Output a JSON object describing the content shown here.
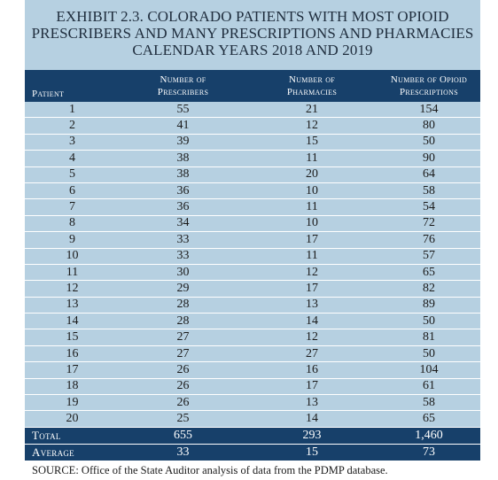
{
  "title_lines": [
    "EXHIBIT 2.3. COLORADO PATIENTS WITH MOST OPIOID",
    "PRESCRIBERS AND MANY PRESCRIPTIONS AND PHARMACIES",
    "CALENDAR YEARS 2018 AND 2019"
  ],
  "headers": [
    {
      "line1": "",
      "line2": "Patient"
    },
    {
      "line1": "Number of",
      "line2": "Prescribers"
    },
    {
      "line1": "Number of",
      "line2": "Pharmacies"
    },
    {
      "line1": "Number of Opioid",
      "line2": "Prescriptions"
    }
  ],
  "rows": [
    [
      "1",
      "55",
      "21",
      "154"
    ],
    [
      "2",
      "41",
      "12",
      "80"
    ],
    [
      "3",
      "39",
      "15",
      "50"
    ],
    [
      "4",
      "38",
      "11",
      "90"
    ],
    [
      "5",
      "38",
      "20",
      "64"
    ],
    [
      "6",
      "36",
      "10",
      "58"
    ],
    [
      "7",
      "36",
      "11",
      "54"
    ],
    [
      "8",
      "34",
      "10",
      "72"
    ],
    [
      "9",
      "33",
      "17",
      "76"
    ],
    [
      "10",
      "33",
      "11",
      "57"
    ],
    [
      "11",
      "30",
      "12",
      "65"
    ],
    [
      "12",
      "29",
      "17",
      "82"
    ],
    [
      "13",
      "28",
      "13",
      "89"
    ],
    [
      "14",
      "28",
      "14",
      "50"
    ],
    [
      "15",
      "27",
      "12",
      "81"
    ],
    [
      "16",
      "27",
      "27",
      "50"
    ],
    [
      "17",
      "26",
      "16",
      "104"
    ],
    [
      "18",
      "26",
      "17",
      "61"
    ],
    [
      "19",
      "26",
      "13",
      "58"
    ],
    [
      "20",
      "25",
      "14",
      "65"
    ]
  ],
  "total": [
    "Total",
    "655",
    "293",
    "1,460"
  ],
  "average": [
    "Average",
    "33",
    "15",
    "73"
  ],
  "source": "SOURCE: Office of the State Auditor analysis of data from the PDMP database.",
  "colors": {
    "background": "#b6d0e1",
    "header": "#17406a",
    "header_text": "#ffffff"
  }
}
